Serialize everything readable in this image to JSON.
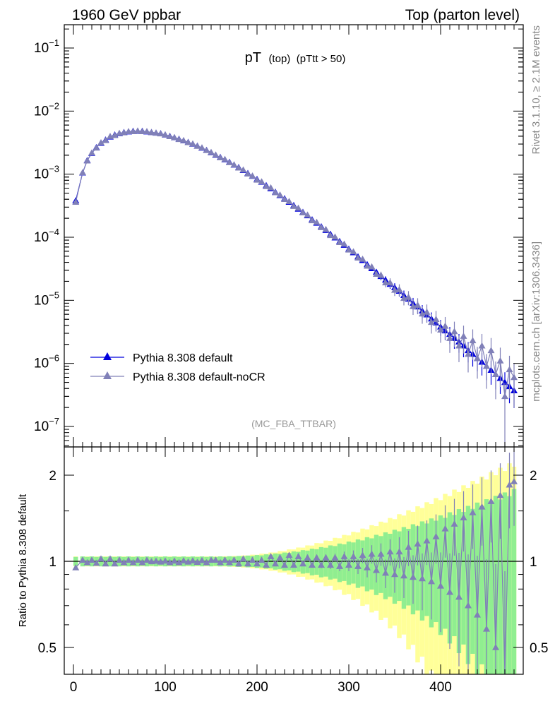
{
  "header": {
    "left": "1960 GeV ppbar",
    "right": "Top (parton level)"
  },
  "plot_title": {
    "main": "pT",
    "sub1": "(top)",
    "sub2": "(pTtt > 50)"
  },
  "analysis_tag": "(MC_FBA_TTBAR)",
  "side_labels": {
    "rivet": "Rivet 3.1.10, ≥ 2.1M events",
    "mcplots": "mcplots.cern.ch [arXiv:1306.3436]"
  },
  "colors": {
    "default": "#0000dd",
    "nocr": "#8080b8",
    "band_yellow": "#ffff99",
    "band_green": "#90ee90"
  },
  "chart_data": [
    {
      "type": "line",
      "panel": "main",
      "title": "pT (top) (pTtt > 50)",
      "xlabel": "",
      "ylabel": "",
      "xlim": [
        -10,
        490
      ],
      "ylim": [
        3.5e-08,
        0.2
      ],
      "yscale": "log",
      "yticks_labels": [
        "10^-7",
        "10^-6",
        "10^-5",
        "10^-4",
        "10^-3",
        "10^-2",
        "10^-1"
      ],
      "legend": {
        "placement": "lower-left"
      },
      "series": [
        {
          "name": "Pythia 8.308 default",
          "x": [
            2.5,
            10,
            15,
            20,
            25,
            30,
            35,
            40,
            45,
            50,
            55,
            60,
            65,
            70,
            75,
            80,
            85,
            90,
            95,
            100,
            105,
            110,
            115,
            120,
            125,
            130,
            135,
            140,
            145,
            150,
            155,
            160,
            165,
            170,
            175,
            180,
            185,
            190,
            195,
            200,
            205,
            210,
            215,
            220,
            225,
            230,
            235,
            240,
            245,
            250,
            255,
            260,
            265,
            270,
            275,
            280,
            285,
            290,
            295,
            300,
            305,
            310,
            315,
            320,
            325,
            330,
            335,
            340,
            345,
            350,
            355,
            360,
            365,
            370,
            375,
            380,
            385,
            390,
            395,
            400,
            405,
            410,
            415,
            420,
            425,
            430,
            435,
            440,
            445,
            450,
            455,
            460,
            465,
            470,
            475,
            480
          ],
          "values": [
            0.00038,
            0.00105,
            0.00165,
            0.00215,
            0.00265,
            0.0031,
            0.0035,
            0.0039,
            0.0042,
            0.0044,
            0.0046,
            0.0047,
            0.0048,
            0.0048,
            0.0048,
            0.0047,
            0.0046,
            0.0045,
            0.0044,
            0.0042,
            0.004,
            0.0038,
            0.0036,
            0.0034,
            0.0032,
            0.003,
            0.0028,
            0.0026,
            0.0024,
            0.0022,
            0.002,
            0.00185,
            0.0017,
            0.00155,
            0.0014,
            0.00128,
            0.00115,
            0.00103,
            0.00093,
            0.00083,
            0.00075,
            0.00066,
            0.00059,
            0.00052,
            0.00046,
            0.00041,
            0.00036,
            0.00032,
            0.00028,
            0.00025,
            0.00022,
            0.00019,
            0.000168,
            0.000147,
            0.000129,
            0.000112,
            9.8e-05,
            8.6e-05,
            7.5e-05,
            6.5e-05,
            5.7e-05,
            4.9e-05,
            4.3e-05,
            3.7e-05,
            3.2e-05,
            2.8e-05,
            2.4e-05,
            2.1e-05,
            1.8e-05,
            1.6e-05,
            1.4e-05,
            1.2e-05,
            1.05e-05,
            9e-06,
            7.9e-06,
            6.8e-06,
            5.9e-06,
            5.1e-06,
            4.4e-06,
            3.8e-06,
            3.3e-06,
            2.9e-06,
            2.5e-06,
            2.2e-06,
            1.9e-06,
            1.6e-06,
            1.4e-06,
            1.2e-06,
            1.05e-06,
            9e-07,
            7.8e-07,
            6.7e-07,
            5.8e-07,
            5e-07,
            4.3e-07,
            3.7e-07
          ]
        },
        {
          "name": "Pythia 8.308 default-noCR",
          "x": [
            2.5,
            10,
            15,
            20,
            25,
            30,
            35,
            40,
            45,
            50,
            55,
            60,
            65,
            70,
            75,
            80,
            85,
            90,
            95,
            100,
            105,
            110,
            115,
            120,
            125,
            130,
            135,
            140,
            145,
            150,
            155,
            160,
            165,
            170,
            175,
            180,
            185,
            190,
            195,
            200,
            205,
            210,
            215,
            220,
            225,
            230,
            235,
            240,
            245,
            250,
            255,
            260,
            265,
            270,
            275,
            280,
            285,
            290,
            295,
            300,
            305,
            310,
            315,
            320,
            325,
            330,
            335,
            340,
            345,
            350,
            355,
            360,
            365,
            370,
            375,
            380,
            385,
            390,
            395,
            400,
            405,
            410,
            415,
            420,
            425,
            430,
            435,
            440,
            445,
            450,
            455,
            460,
            465,
            470,
            475,
            480
          ],
          "values": [
            0.00036,
            0.00106,
            0.00163,
            0.00218,
            0.00261,
            0.00316,
            0.00343,
            0.00398,
            0.00412,
            0.00445,
            0.00455,
            0.00475,
            0.00475,
            0.00485,
            0.00475,
            0.00474,
            0.00459,
            0.00451,
            0.00438,
            0.00421,
            0.00396,
            0.00381,
            0.00356,
            0.00342,
            0.00318,
            0.00302,
            0.00278,
            0.00262,
            0.00238,
            0.00222,
            0.00202,
            0.00183,
            0.00172,
            0.00153,
            0.00141,
            0.00126,
            0.00117,
            0.00101,
            0.00094,
            0.00081,
            0.00076,
            0.00064,
            0.00061,
            0.00051,
            0.00047,
            0.0004,
            0.00037,
            0.00031,
            0.00029,
            0.000245,
            0.000226,
            0.000184,
            0.000173,
            0.000143,
            0.000133,
            0.000107,
            0.000101,
            8.3e-05,
            7.8e-05,
            6.3e-05,
            5.9e-05,
            4.7e-05,
            4.5e-05,
            3.5e-05,
            3.4e-05,
            2.6e-05,
            2.5e-05,
            1.9e-05,
            1.9e-05,
            1.45e-05,
            1.48e-05,
            1.08e-05,
            1.12e-05,
            8e-06,
            8.4e-06,
            6.1e-06,
            6.5e-06,
            4.5e-06,
            5e-06,
            3.4e-06,
            3.9e-06,
            2.5e-06,
            3.2e-06,
            1.9e-06,
            2.7e-06,
            1.4e-06,
            2.3e-06,
            1.2e-06,
            1.9e-06,
            9e-07,
            1.6e-06,
            6.7e-07,
            1.1e-06,
            3e-07,
            8e-07,
            6e-07
          ]
        }
      ]
    },
    {
      "type": "line",
      "panel": "ratio",
      "xlabel": "",
      "ylabel": "Ratio to Pythia 8.308 default",
      "xlim": [
        -10,
        490
      ],
      "ylim": [
        0.4,
        2.4
      ],
      "xticks": [
        0,
        100,
        200,
        300,
        400
      ],
      "yticks": [
        0.5,
        1,
        2
      ],
      "reference_line": 1,
      "series": [
        {
          "name": "Pythia 8.308 default-noCR",
          "x": [
            2.5,
            10,
            15,
            20,
            25,
            30,
            35,
            40,
            45,
            50,
            55,
            60,
            65,
            70,
            75,
            80,
            85,
            90,
            95,
            100,
            105,
            110,
            115,
            120,
            125,
            130,
            135,
            140,
            145,
            150,
            155,
            160,
            165,
            170,
            175,
            180,
            185,
            190,
            195,
            200,
            205,
            210,
            215,
            220,
            225,
            230,
            235,
            240,
            245,
            250,
            255,
            260,
            265,
            270,
            275,
            280,
            285,
            290,
            295,
            300,
            305,
            310,
            315,
            320,
            325,
            330,
            335,
            340,
            345,
            350,
            355,
            360,
            365,
            370,
            375,
            380,
            385,
            390,
            395,
            400,
            405,
            410,
            415,
            420,
            425,
            430,
            435,
            440,
            445,
            450,
            455,
            460,
            465,
            470,
            475,
            480
          ],
          "values": [
            0.95,
            1.01,
            0.99,
            1.01,
            0.985,
            1.02,
            0.98,
            1.02,
            0.98,
            1.01,
            0.99,
            1.01,
            0.99,
            1.01,
            0.99,
            1.01,
            0.998,
            1.002,
            0.995,
            1.003,
            0.99,
            1.003,
            0.99,
            1.005,
            0.995,
            1.005,
            0.993,
            1.007,
            0.99,
            1.01,
            1.01,
            0.99,
            1.01,
            0.99,
            1.01,
            0.98,
            1.02,
            0.98,
            1.01,
            0.98,
            1.01,
            0.97,
            1.04,
            0.98,
            1.03,
            0.97,
            1.05,
            0.97,
            1.04,
            0.98,
            1.03,
            0.97,
            1.03,
            0.97,
            1.03,
            0.97,
            1.03,
            0.96,
            1.04,
            0.97,
            1.04,
            0.96,
            1.05,
            0.95,
            1.06,
            0.93,
            1.06,
            0.91,
            1.08,
            0.9,
            1.08,
            0.89,
            1.12,
            0.88,
            1.15,
            0.87,
            1.18,
            0.85,
            1.22,
            0.82,
            1.3,
            0.78,
            1.35,
            0.75,
            1.42,
            0.7,
            1.48,
            0.65,
            1.55,
            0.58,
            1.62,
            0.5,
            1.7,
            0.4,
            1.85,
            1.9
          ]
        }
      ]
    }
  ]
}
